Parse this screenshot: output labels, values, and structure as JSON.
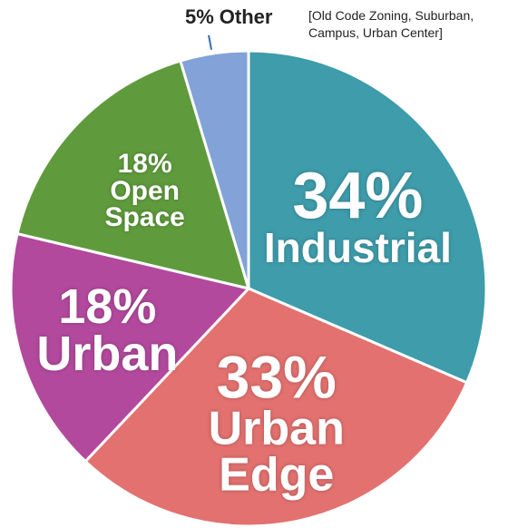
{
  "chart_data": {
    "type": "pie",
    "categories": [
      "Industrial",
      "Urban Edge",
      "Urban",
      "Open Space",
      "Other"
    ],
    "values": [
      34,
      33,
      18,
      18,
      5
    ],
    "value_labels": [
      "34%",
      "33%",
      "18%",
      "18%",
      "5%"
    ],
    "colors": [
      "#3e9cab",
      "#e2716f",
      "#b2499d",
      "#5f9b3c",
      "#82a2d8"
    ],
    "annotation": "[Old Code Zoning, Suburban, Campus, Urban Center]"
  }
}
